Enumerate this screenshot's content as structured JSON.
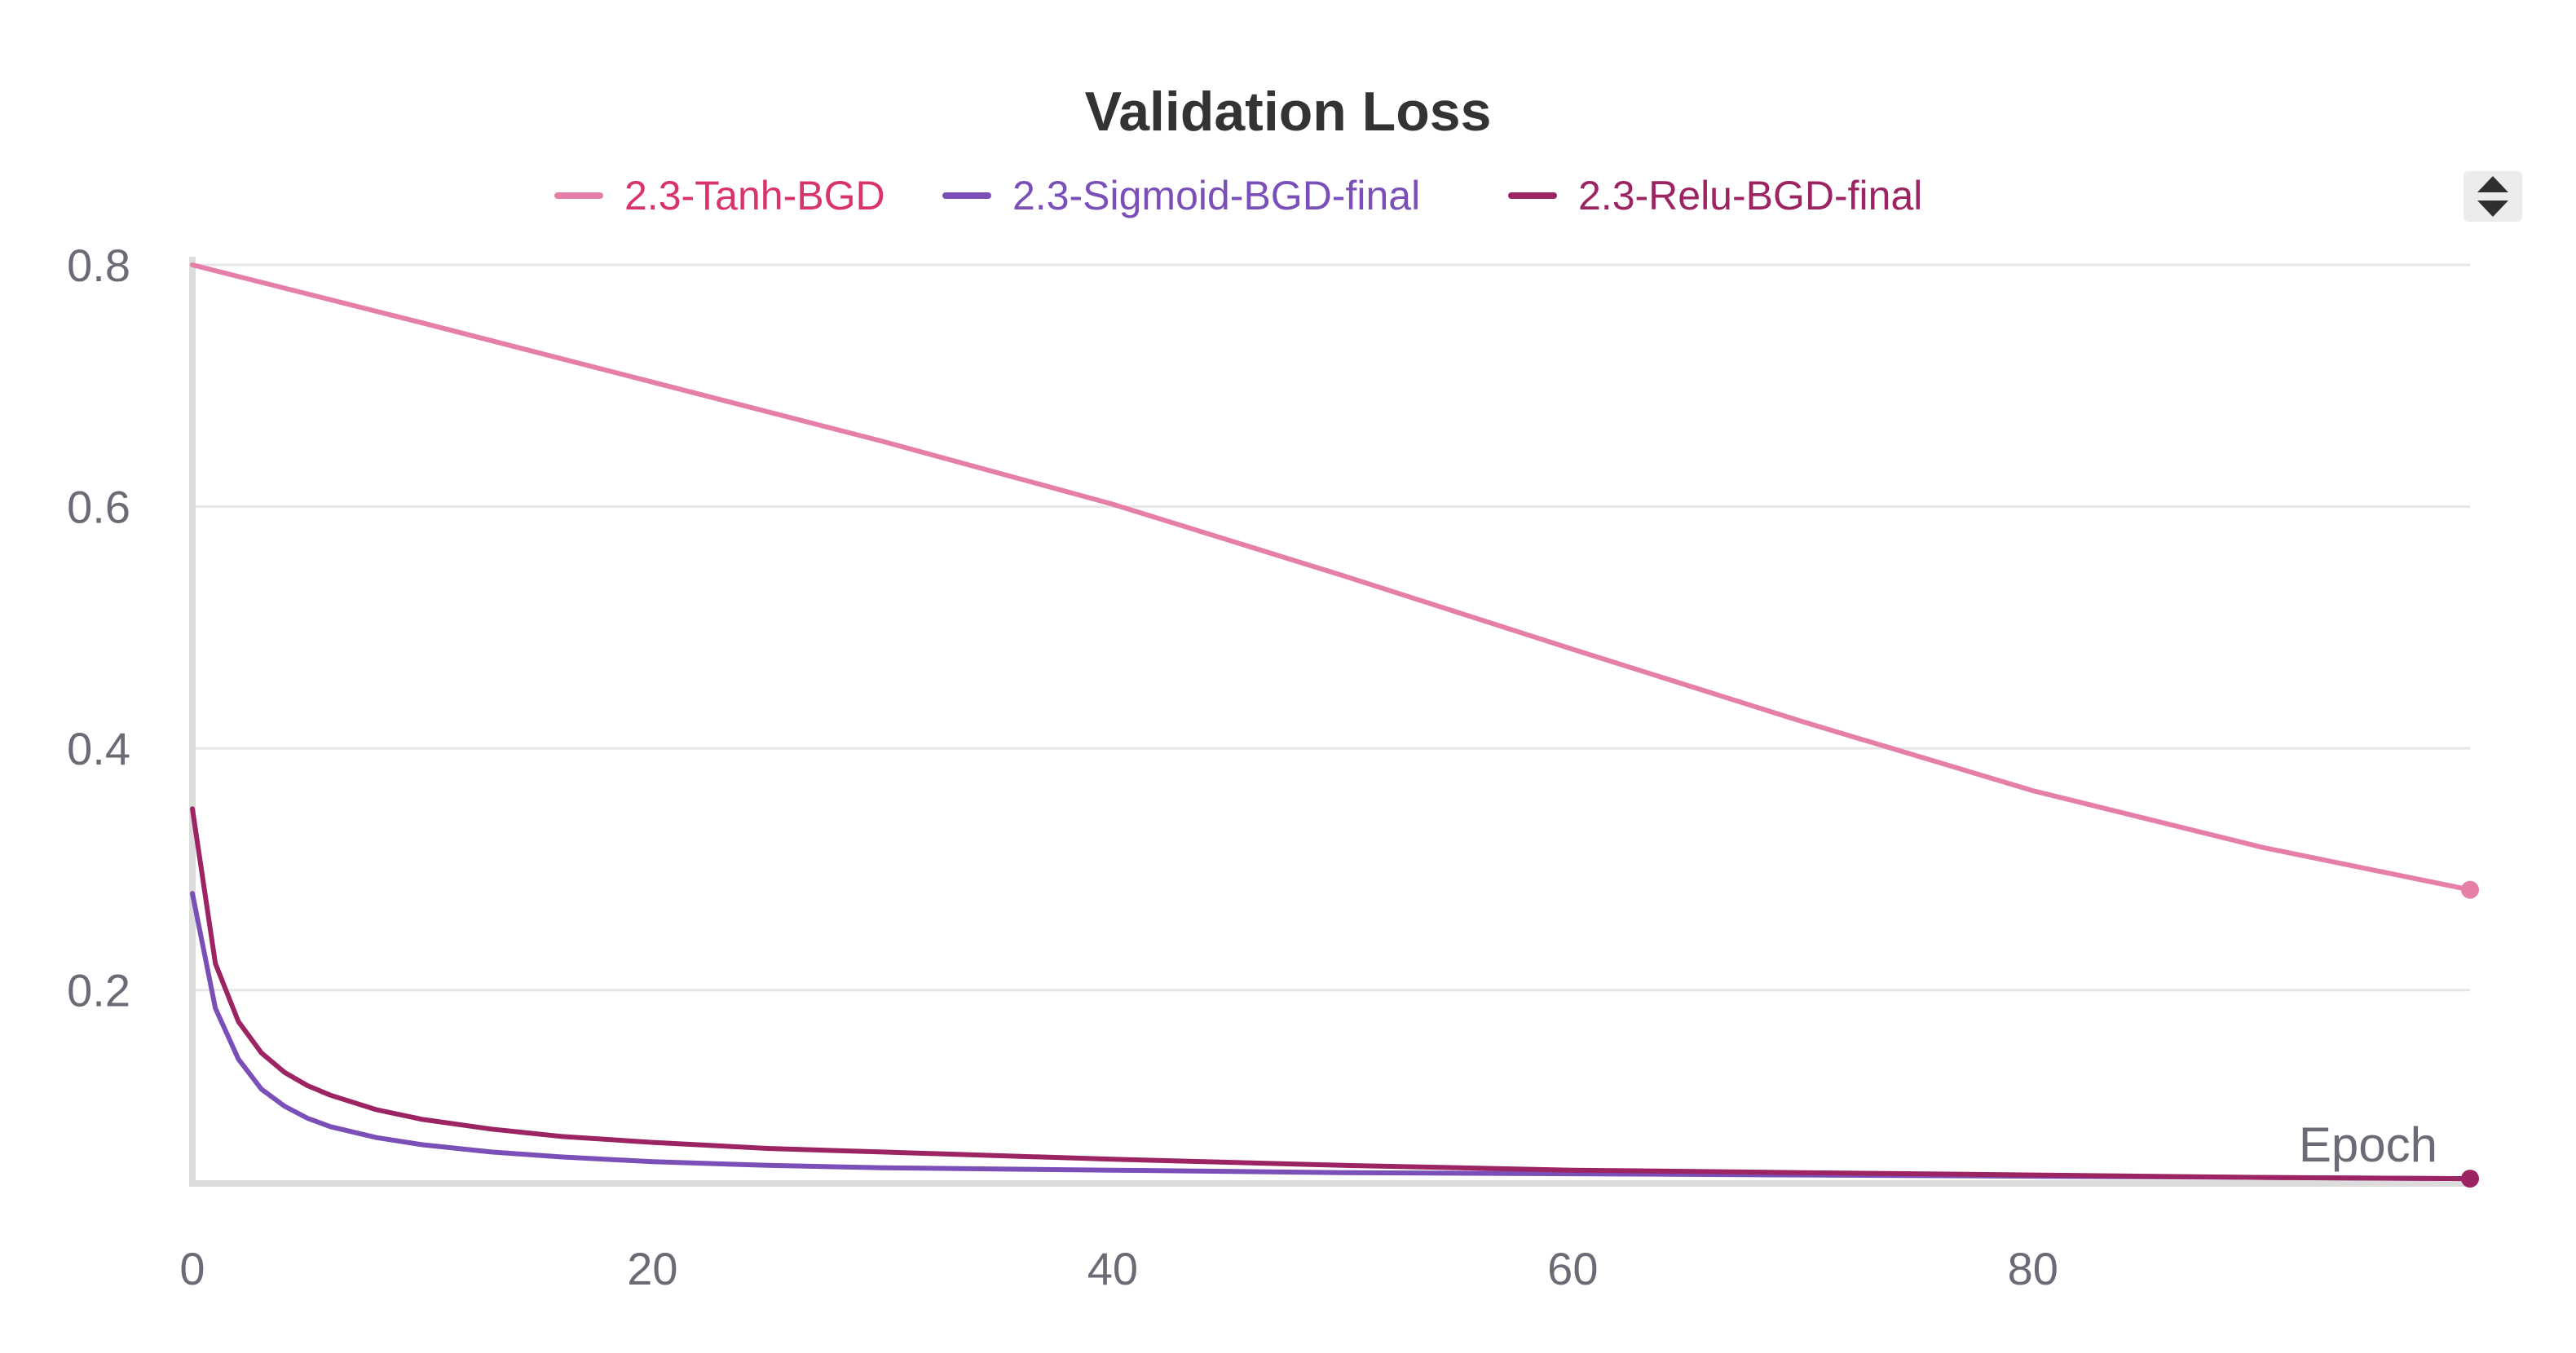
{
  "chart_data": {
    "type": "line",
    "title": "Validation Loss",
    "xlabel": "Epoch",
    "ylabel": "",
    "xlim": [
      0,
      99
    ],
    "ylim": [
      0.04,
      0.8
    ],
    "x_ticks": [
      0,
      20,
      40,
      60,
      80
    ],
    "x_tick_labels": [
      "0",
      "20",
      "40",
      "60",
      "80"
    ],
    "y_ticks": [
      0.2,
      0.4,
      0.6,
      0.8
    ],
    "y_tick_labels": [
      "0.2",
      "0.4",
      "0.6",
      "0.8"
    ],
    "grid": true,
    "legend_position": "top-center",
    "series": [
      {
        "name": "2.3-Tanh-BGD",
        "color": "#e57fa8",
        "label_color": "#d9336b",
        "end_marker": true,
        "x": [
          0,
          10,
          20,
          30,
          40,
          50,
          60,
          70,
          80,
          90,
          99
        ],
        "y": [
          0.8,
          0.752,
          0.703,
          0.654,
          0.602,
          0.543,
          0.482,
          0.422,
          0.365,
          0.318,
          0.283
        ]
      },
      {
        "name": "2.3-Sigmoid-BGD-final",
        "color": "#7b4fb8",
        "label_color": "#7b4fb8",
        "end_marker": false,
        "x": [
          0,
          1,
          2,
          3,
          4,
          5,
          6,
          8,
          10,
          13,
          16,
          20,
          25,
          30,
          40,
          50,
          60,
          70,
          80,
          90,
          99
        ],
        "y": [
          0.28,
          0.185,
          0.143,
          0.118,
          0.104,
          0.094,
          0.087,
          0.078,
          0.072,
          0.066,
          0.062,
          0.058,
          0.055,
          0.053,
          0.051,
          0.049,
          0.048,
          0.047,
          0.046,
          0.045,
          0.044
        ]
      },
      {
        "name": "2.3-Relu-BGD-final",
        "color": "#9c2462",
        "label_color": "#9c2462",
        "end_marker": true,
        "x": [
          0,
          1,
          2,
          3,
          4,
          5,
          6,
          8,
          10,
          13,
          16,
          20,
          25,
          30,
          40,
          50,
          60,
          70,
          80,
          90,
          99
        ],
        "y": [
          0.35,
          0.222,
          0.174,
          0.148,
          0.132,
          0.121,
          0.113,
          0.101,
          0.093,
          0.085,
          0.079,
          0.074,
          0.069,
          0.066,
          0.06,
          0.055,
          0.051,
          0.049,
          0.047,
          0.045,
          0.044
        ]
      }
    ]
  }
}
